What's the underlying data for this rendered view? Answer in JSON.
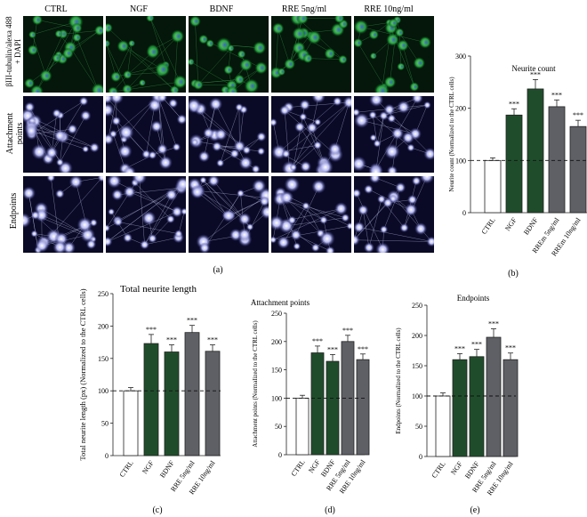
{
  "microscopy": {
    "column_headers": [
      "CTRL",
      "NGF",
      "BDNF",
      "RRE 5ng/ml",
      "RRE 10ng/ml"
    ],
    "row_labels": [
      "βIII-tubulin/alexa 488\n+ DAPI",
      "Attachment\npoints",
      "Endpoints"
    ],
    "panel_label": "(a)"
  },
  "colors": {
    "ctrl": "#ffffff",
    "ngf": "#1f4d2b",
    "bdnf": "#1f4d2b",
    "rre": "#5f6066",
    "green_channel": "#1e9a3c",
    "blue_channel": "#4b4fb8"
  },
  "chart_data": [
    {
      "type": "bar",
      "panel_label": "(b)",
      "title": "Neurite count",
      "ylabel": "Neurite count (Normalized to the CTRL cells)",
      "categories": [
        "CTRL",
        "NGF",
        "BDNF",
        "RREm 5ng/ml",
        "RREm 10ng/ml"
      ],
      "values": [
        100,
        187,
        237,
        203,
        165
      ],
      "errors": [
        5,
        12,
        18,
        13,
        12
      ],
      "significance": [
        "",
        "***",
        "***",
        "***",
        "***"
      ],
      "ylim": [
        0,
        300
      ],
      "yticks": [
        0,
        100,
        200,
        300
      ],
      "reference_line": 100
    },
    {
      "type": "bar",
      "panel_label": "(c)",
      "title": "Total neurite length",
      "ylabel": "Total neurite length (px) (Normalized to the CTRL cells)",
      "categories": [
        "CTRL",
        "NGF",
        "BDNF",
        "RRE 5ng/ml",
        "RRE 10ng/ml"
      ],
      "values": [
        100,
        173,
        160,
        190,
        161
      ],
      "errors": [
        5,
        14,
        11,
        11,
        10
      ],
      "significance": [
        "",
        "***",
        "***",
        "***",
        "***"
      ],
      "ylim": [
        0,
        250
      ],
      "yticks": [
        0,
        50,
        100,
        150,
        200,
        250
      ],
      "reference_line": 100
    },
    {
      "type": "bar",
      "panel_label": "(d)",
      "title": "Attachment points",
      "ylabel": "Attachment points (Normalized to the CTRL cells)",
      "categories": [
        "CTRL",
        "NGF",
        "BDNF",
        "RRE 5ng/ml",
        "RRE 10ng/ml"
      ],
      "values": [
        100,
        180,
        165,
        200,
        168
      ],
      "errors": [
        5,
        12,
        12,
        11,
        10
      ],
      "significance": [
        "",
        "***",
        "***",
        "***",
        "***"
      ],
      "ylim": [
        0,
        250
      ],
      "yticks": [
        0,
        50,
        100,
        150,
        200,
        250
      ],
      "reference_line": 100
    },
    {
      "type": "bar",
      "panel_label": "(e)",
      "title": "Endpoints",
      "ylabel": "Endpoints (Normalized to the CTRL cells)",
      "categories": [
        "CTRL",
        "NGF",
        "BDNF",
        "RRE 5ng/ml",
        "RRE 10ng/ml"
      ],
      "values": [
        100,
        160,
        165,
        197,
        160
      ],
      "errors": [
        5,
        10,
        12,
        14,
        11
      ],
      "significance": [
        "",
        "***",
        "***",
        "***",
        "***"
      ],
      "ylim": [
        0,
        250
      ],
      "yticks": [
        0,
        50,
        100,
        150,
        200,
        250
      ],
      "reference_line": 100
    }
  ]
}
